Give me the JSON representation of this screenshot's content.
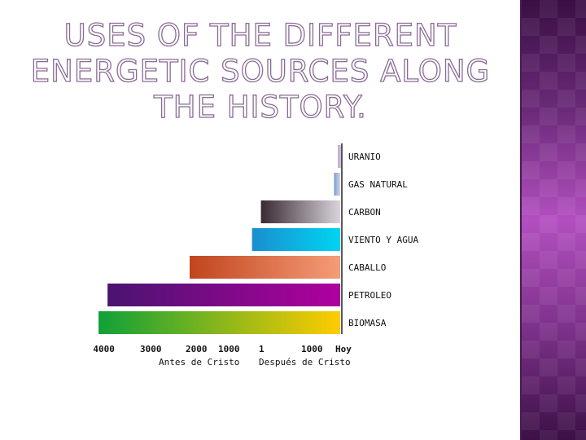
{
  "slide": {
    "title": "USES OF THE DIFFERENT ENERGETIC SOURCES ALONG THE HISTORY."
  },
  "colors": {
    "panel": "#5a1f66",
    "title_outline": "#8a6b96"
  },
  "chart_data": {
    "type": "bar",
    "orientation": "horizontal",
    "axis_end_label": "Hoy",
    "series": [
      {
        "label": "URANIO",
        "start": 1950,
        "end": 2010,
        "color_from": "#b8a0c8",
        "color_to": "#d8c8e0"
      },
      {
        "label": "GAS NATURAL",
        "start": 1850,
        "end": 2010,
        "color_from": "#7e9ccf",
        "color_to": "#cfd8e8"
      },
      {
        "label": "CARBON",
        "start": 50,
        "end": 2010,
        "color_from": "#3a2a33",
        "color_to": "#d9d4dc"
      },
      {
        "label": "VIENTO Y AGUA",
        "start": -150,
        "end": 2010,
        "color_from": "#1a8fd0",
        "color_to": "#00d4f0"
      },
      {
        "label": "CABALLO",
        "start": -1600,
        "end": 2010,
        "color_from": "#c0451e",
        "color_to": "#f59c78"
      },
      {
        "label": "PETROLEO",
        "start": -3500,
        "end": 2010,
        "color_from": "#4a1470",
        "color_to": "#b0009e"
      },
      {
        "label": "BIOMASA",
        "start": -3750,
        "end": 2010,
        "color_from": "#10a038",
        "color_to": "#ffcc00"
      }
    ],
    "ticks": [
      {
        "label": "4000",
        "value": -3900
      },
      {
        "label": "3000",
        "value": -2600
      },
      {
        "label": "2000",
        "value": -1700
      },
      {
        "label": "1000",
        "value": -900
      },
      {
        "label": "1",
        "value": 1
      },
      {
        "label": "1000",
        "value": 1000
      },
      {
        "label": "Hoy",
        "value": 2000
      }
    ],
    "period_labels": [
      {
        "text": "Antes de Cristo",
        "value": -1300
      },
      {
        "text": "Después de Cristo",
        "value": 1000
      }
    ]
  }
}
